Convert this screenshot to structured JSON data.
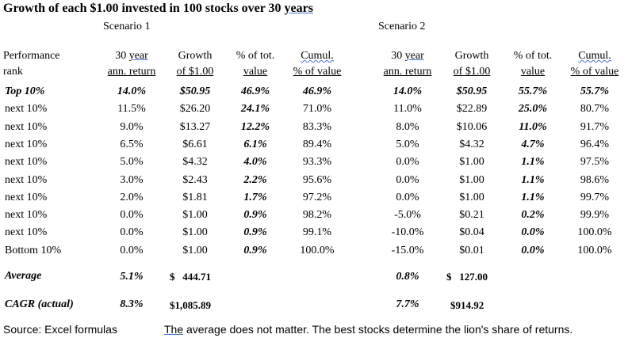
{
  "title_prefix": "Growth of each $1.00 invested in 100 stocks over 30 ",
  "title_suffix": "years",
  "scenarios": [
    "Scenario 1",
    "Scenario 2"
  ],
  "headers": {
    "rank_1": "Performance",
    "rank_2": "rank",
    "return_1": "30 year",
    "return_2": "ann. return",
    "growth_1": "Growth",
    "growth_2": "of $1.00",
    "pct_1": "% of tot.",
    "pct_2": "value",
    "cum_1": "Cumul.",
    "cum_2": "% of value"
  },
  "rows": [
    {
      "rank": "Top 10%",
      "s1": [
        "14.0%",
        "$50.95",
        "46.9%",
        "46.9%"
      ],
      "s2": [
        "14.0%",
        "$50.95",
        "55.7%",
        "55.7%"
      ]
    },
    {
      "rank": "next 10%",
      "s1": [
        "11.5%",
        "$26.20",
        "24.1%",
        "71.0%"
      ],
      "s2": [
        "11.0%",
        "$22.89",
        "25.0%",
        "80.7%"
      ]
    },
    {
      "rank": "next 10%",
      "s1": [
        "9.0%",
        "$13.27",
        "12.2%",
        "83.3%"
      ],
      "s2": [
        "8.0%",
        "$10.06",
        "11.0%",
        "91.7%"
      ]
    },
    {
      "rank": "next 10%",
      "s1": [
        "6.5%",
        "$6.61",
        "6.1%",
        "89.4%"
      ],
      "s2": [
        "5.0%",
        "$4.32",
        "4.7%",
        "96.4%"
      ]
    },
    {
      "rank": "next 10%",
      "s1": [
        "5.0%",
        "$4.32",
        "4.0%",
        "93.3%"
      ],
      "s2": [
        "0.0%",
        "$1.00",
        "1.1%",
        "97.5%"
      ]
    },
    {
      "rank": "next 10%",
      "s1": [
        "3.0%",
        "$2.43",
        "2.2%",
        "95.6%"
      ],
      "s2": [
        "0.0%",
        "$1.00",
        "1.1%",
        "98.6%"
      ]
    },
    {
      "rank": "next 10%",
      "s1": [
        "2.0%",
        "$1.81",
        "1.7%",
        "97.2%"
      ],
      "s2": [
        "0.0%",
        "$1.00",
        "1.1%",
        "99.7%"
      ]
    },
    {
      "rank": "next 10%",
      "s1": [
        "0.0%",
        "$1.00",
        "0.9%",
        "98.2%"
      ],
      "s2": [
        "-5.0%",
        "$0.21",
        "0.2%",
        "99.9%"
      ]
    },
    {
      "rank": "next 10%",
      "s1": [
        "0.0%",
        "$1.00",
        "0.9%",
        "99.1%"
      ],
      "s2": [
        "-10.0%",
        "$0.04",
        "0.0%",
        "100.0%"
      ]
    },
    {
      "rank": "Bottom 10%",
      "s1": [
        "0.0%",
        "$1.00",
        "0.9%",
        "100.0%"
      ],
      "s2": [
        "-15.0%",
        "$0.01",
        "0.0%",
        "100.0%"
      ]
    }
  ],
  "average": {
    "label": "Average",
    "s1_return": "5.1%",
    "s1_value": "$   444.71",
    "s2_return": "0.8%",
    "s2_value": "$   127.00"
  },
  "cagr": {
    "label": "CAGR (actual)",
    "s1_return": "8.3%",
    "s1_value": "$1,085.89",
    "s2_return": "7.7%",
    "s2_value": "$914.92"
  },
  "footer": {
    "source": "Source: Excel formulas",
    "note_first": "The",
    "note_rest": " average does not matter.  The best stocks determine the lion's share of returns."
  }
}
